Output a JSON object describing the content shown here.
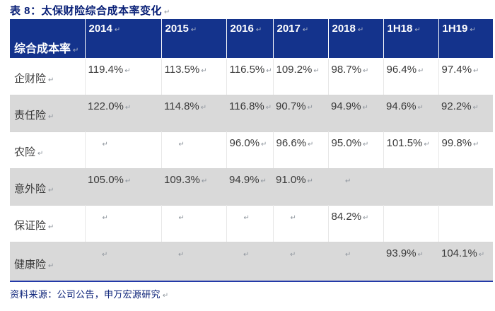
{
  "title": {
    "text": "表 8：太保财险综合成本率变化"
  },
  "table": {
    "header": [
      "综合成本率",
      "2014",
      "2015",
      "2016",
      "2017",
      "2018",
      "1H18",
      "1H19"
    ],
    "rows": [
      {
        "label": "企财险",
        "values": [
          "119.4%",
          "113.5%",
          "116.5%",
          "109.2%",
          "98.7%",
          "96.4%",
          "97.4%"
        ]
      },
      {
        "label": "责任险",
        "values": [
          "122.0%",
          "114.8%",
          "116.8%",
          "90.7%",
          "94.9%",
          "94.6%",
          "92.2%"
        ]
      },
      {
        "label": "农险",
        "values": [
          "",
          "",
          "96.0%",
          "96.6%",
          "95.0%",
          "101.5%",
          "99.8%"
        ]
      },
      {
        "label": "意外险",
        "values": [
          "105.0%",
          "109.3%",
          "94.9%",
          "91.0%",
          "",
          null,
          null
        ]
      },
      {
        "label": "保证险",
        "values": [
          "",
          "",
          "",
          "",
          "84.2%",
          null,
          null
        ]
      },
      {
        "label": "健康险",
        "values": [
          "",
          "",
          "",
          "",
          "",
          "93.9%",
          "104.1%"
        ]
      }
    ]
  },
  "footer": {
    "text": "资料来源：公司公告，申万宏源研究"
  },
  "symbols": {
    "paragraph_mark": "↵"
  },
  "colors": {
    "header_bg": "#14338C",
    "title_text": "#0A2178",
    "row_alt_bg": "#D9D9D9",
    "body_text": "#3A3A3A",
    "bottom_border": "#2339A8",
    "mark": "#8E959D"
  }
}
